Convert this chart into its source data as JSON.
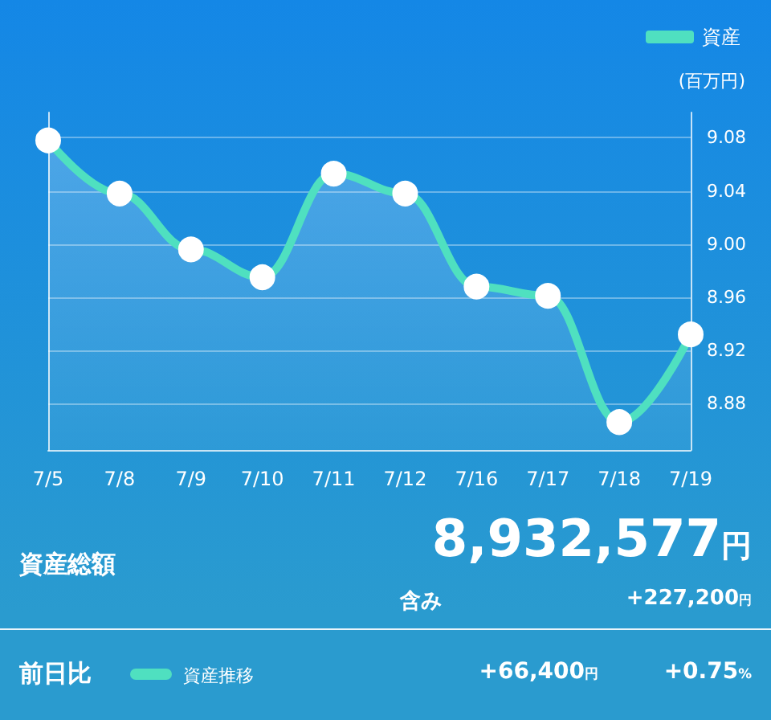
{
  "chart_data": {
    "type": "area",
    "categories": [
      "7/5",
      "7/8",
      "7/9",
      "7/10",
      "7/11",
      "7/12",
      "7/16",
      "7/17",
      "7/18",
      "7/19"
    ],
    "series": [
      {
        "name": "資産",
        "color": "#4fe0c0",
        "values": [
          9.078,
          9.038,
          8.996,
          8.975,
          9.053,
          9.038,
          8.968,
          8.961,
          8.866,
          8.932
        ]
      }
    ],
    "ylabel": "(百万円)",
    "ylim": [
      8.845,
      9.099
    ],
    "yticks": [
      {
        "value": 8.88,
        "label": "8.88"
      },
      {
        "value": 8.92,
        "label": "8.92"
      },
      {
        "value": 8.96,
        "label": "8.96"
      },
      {
        "value": 9.0,
        "label": "9.00"
      },
      {
        "value": 9.04,
        "label": "9.04"
      },
      {
        "value": 9.08,
        "label": "9.08"
      }
    ],
    "grid": "y",
    "legend": "top right",
    "marker": "circle",
    "line_style": "solid",
    "annotations": [
      "資産総額",
      "8,932,577円",
      "含み",
      "+227,200円",
      "前日比",
      "資産推移",
      "+66,400円",
      "+0.75%"
    ]
  }
}
